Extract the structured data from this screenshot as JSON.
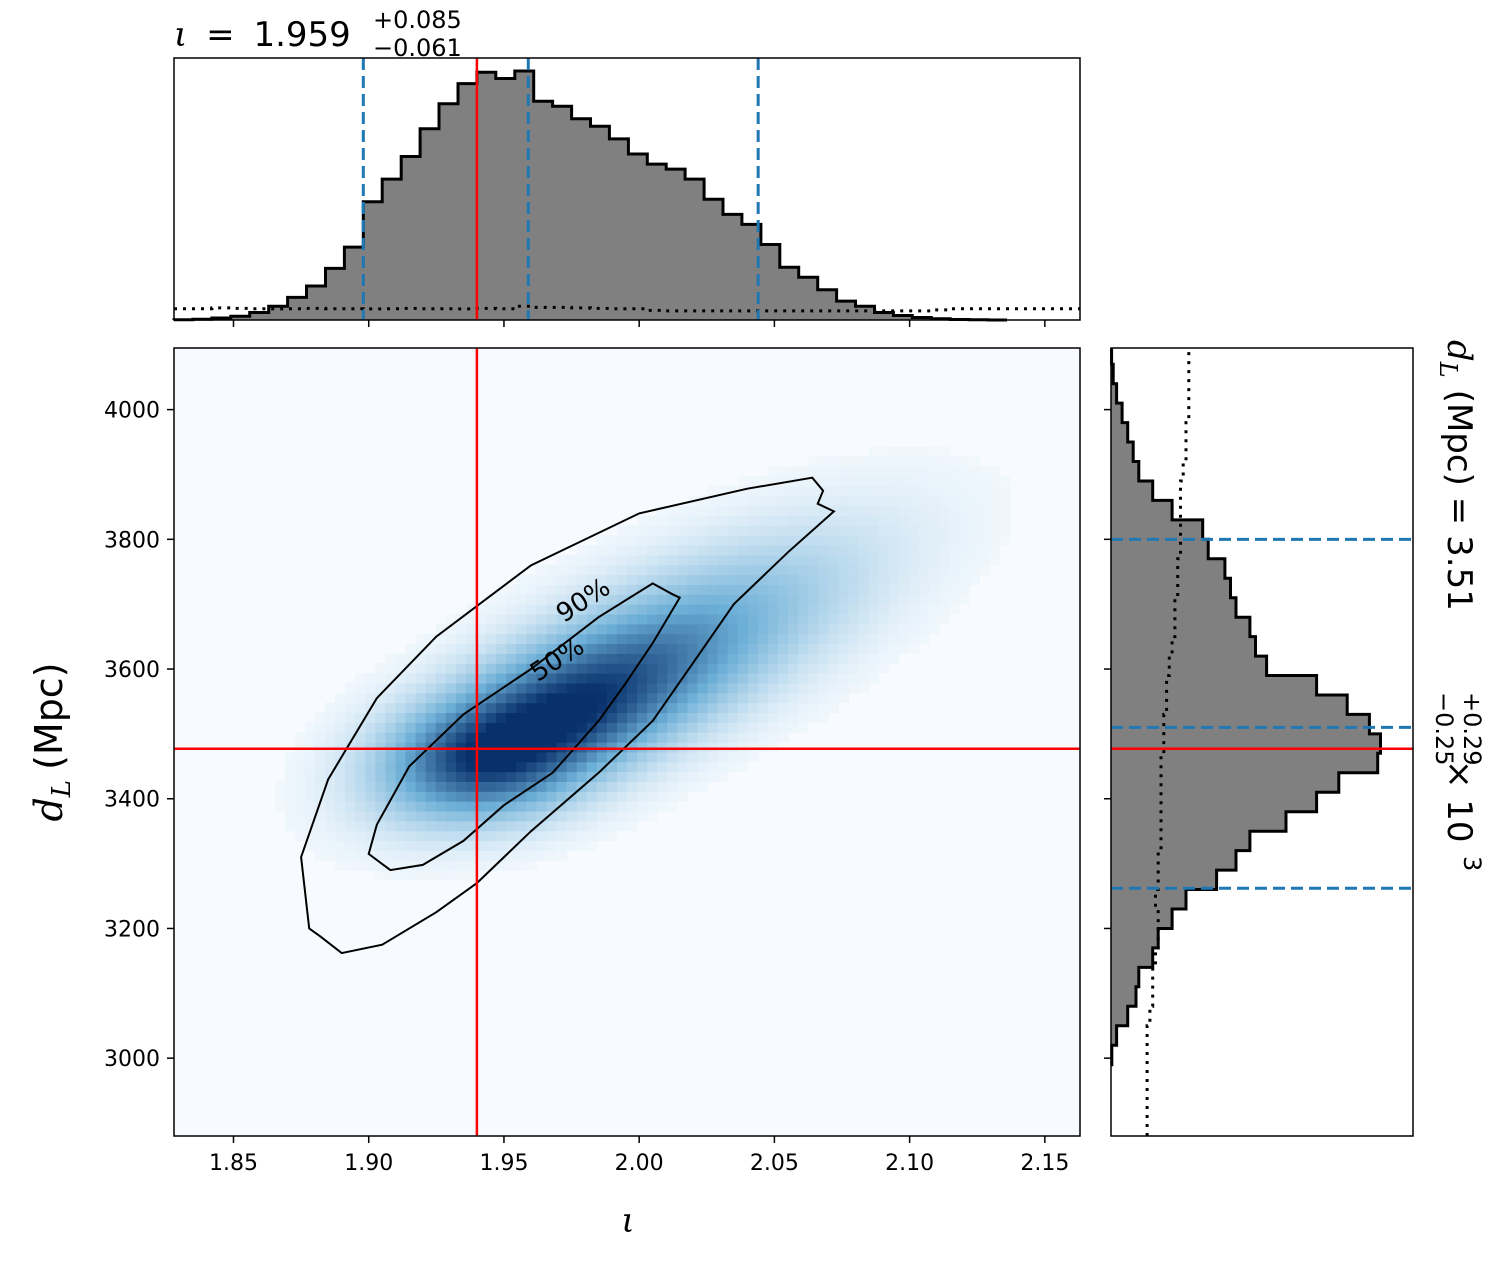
{
  "chart_data": {
    "type": "heatmap",
    "top_title": {
      "symbol": "ι",
      "equals": "=",
      "median": "1.959",
      "upper": "+0.085",
      "lower": "−0.061"
    },
    "right_title": {
      "label": "d",
      "label_sub": "L",
      "unit": "(Mpc) =",
      "median": "3.51",
      "upper": "+0.29",
      "lower": "−0.25",
      "times": "× 10",
      "exponent": "3"
    },
    "xlabel": "ι",
    "ylabel": "d",
    "ylabel_sub": "L",
    "ylabel_unit": "(Mpc)",
    "xlim": [
      1.828,
      2.163
    ],
    "ylim": [
      2880,
      4095
    ],
    "xticks": [
      1.85,
      1.9,
      1.95,
      2.0,
      2.05,
      2.1,
      2.15
    ],
    "xtick_labels": [
      "1.85",
      "1.90",
      "1.95",
      "2.00",
      "2.05",
      "2.10",
      "2.15"
    ],
    "yticks": [
      3000,
      3200,
      3400,
      3600,
      3800,
      4000
    ],
    "ytick_labels": [
      "3000",
      "3200",
      "3400",
      "3600",
      "3800",
      "4000"
    ],
    "injected_value": {
      "iota": 1.94,
      "dL": 3477
    },
    "quantile_lines_iota": [
      1.898,
      1.959,
      2.044
    ],
    "quantile_lines_dL": [
      3262,
      3510,
      3800
    ],
    "contour_labels": [
      "90%",
      "50%"
    ],
    "contours": [
      {
        "label": "90%",
        "points": [
          [
            2.072,
            3843
          ],
          [
            2.066,
            3855
          ],
          [
            2.068,
            3875
          ],
          [
            2.064,
            3895
          ],
          [
            2.04,
            3878
          ],
          [
            2.0,
            3840
          ],
          [
            1.96,
            3760
          ],
          [
            1.925,
            3650
          ],
          [
            1.903,
            3555
          ],
          [
            1.885,
            3430
          ],
          [
            1.875,
            3310
          ],
          [
            1.878,
            3200
          ],
          [
            1.882,
            3188
          ],
          [
            1.89,
            3162
          ],
          [
            1.905,
            3175
          ],
          [
            1.925,
            3225
          ],
          [
            1.94,
            3270
          ],
          [
            1.96,
            3350
          ],
          [
            1.985,
            3440
          ],
          [
            2.005,
            3520
          ],
          [
            2.02,
            3610
          ],
          [
            2.035,
            3700
          ],
          [
            2.055,
            3780
          ]
        ]
      },
      {
        "label": "50%",
        "points": [
          [
            2.015,
            3710
          ],
          [
            2.012,
            3716
          ],
          [
            2.005,
            3732
          ],
          [
            1.985,
            3680
          ],
          [
            1.96,
            3600
          ],
          [
            1.935,
            3530
          ],
          [
            1.915,
            3450
          ],
          [
            1.903,
            3360
          ],
          [
            1.9,
            3315
          ],
          [
            1.908,
            3290
          ],
          [
            1.92,
            3298
          ],
          [
            1.935,
            3335
          ],
          [
            1.95,
            3390
          ],
          [
            1.968,
            3440
          ],
          [
            1.985,
            3520
          ],
          [
            1.995,
            3578
          ],
          [
            2.005,
            3640
          ]
        ]
      }
    ],
    "density_peak": {
      "iota": 1.948,
      "dL": 3475
    },
    "top_histogram": {
      "bin_edges": [
        1.828,
        1.835,
        1.842,
        1.849,
        1.856,
        1.863,
        1.87,
        1.877,
        1.884,
        1.891,
        1.898,
        1.905,
        1.912,
        1.919,
        1.926,
        1.933,
        1.94,
        1.947,
        1.954,
        1.961,
        1.968,
        1.975,
        1.982,
        1.989,
        1.996,
        2.003,
        2.01,
        2.017,
        2.024,
        2.031,
        2.038,
        2.045,
        2.052,
        2.059,
        2.066,
        2.073,
        2.08,
        2.087,
        2.094,
        2.101,
        2.108,
        2.115,
        2.122,
        2.129,
        2.136
      ],
      "density": [
        0.001,
        0.003,
        0.008,
        0.015,
        0.03,
        0.055,
        0.09,
        0.135,
        0.205,
        0.29,
        0.47,
        0.56,
        0.65,
        0.76,
        0.86,
        0.94,
        0.985,
        0.96,
        0.99,
        0.87,
        0.85,
        0.8,
        0.77,
        0.72,
        0.66,
        0.62,
        0.6,
        0.56,
        0.48,
        0.42,
        0.38,
        0.3,
        0.21,
        0.17,
        0.12,
        0.075,
        0.055,
        0.03,
        0.018,
        0.01,
        0.005,
        0.002,
        0.001,
        0.0
      ],
      "prior_dotted": [
        0.045,
        0.045,
        0.048,
        0.046,
        0.045,
        0.044,
        0.045,
        0.046,
        0.045,
        0.045,
        0.044,
        0.045,
        0.046,
        0.045,
        0.045,
        0.044,
        0.046,
        0.045,
        0.055,
        0.05,
        0.05,
        0.048,
        0.046,
        0.045,
        0.045,
        0.038,
        0.036,
        0.036,
        0.036,
        0.036,
        0.036,
        0.036,
        0.036,
        0.036,
        0.036,
        0.036,
        0.036,
        0.036,
        0.036,
        0.036,
        0.04,
        0.045,
        0.045,
        0.045
      ]
    },
    "right_histogram": {
      "bin_edges": [
        2990,
        3020,
        3050,
        3080,
        3110,
        3140,
        3170,
        3200,
        3230,
        3260,
        3290,
        3320,
        3350,
        3380,
        3410,
        3440,
        3470,
        3500,
        3530,
        3560,
        3590,
        3620,
        3650,
        3680,
        3710,
        3740,
        3770,
        3800,
        3830,
        3860,
        3890,
        3920,
        3950,
        3980,
        4010,
        4040,
        4070,
        4095
      ],
      "density": [
        0.003,
        0.02,
        0.06,
        0.09,
        0.1,
        0.15,
        0.17,
        0.22,
        0.27,
        0.38,
        0.45,
        0.5,
        0.63,
        0.74,
        0.82,
        0.96,
        0.97,
        0.93,
        0.85,
        0.74,
        0.56,
        0.52,
        0.5,
        0.45,
        0.43,
        0.41,
        0.35,
        0.33,
        0.22,
        0.15,
        0.1,
        0.08,
        0.06,
        0.04,
        0.02,
        0.008,
        0.002
      ],
      "prior_dotted": [
        0.13,
        0.13,
        0.14,
        0.15,
        0.15,
        0.16,
        0.17,
        0.17,
        0.16,
        0.17,
        0.17,
        0.18,
        0.18,
        0.18,
        0.18,
        0.18,
        0.19,
        0.19,
        0.2,
        0.2,
        0.21,
        0.22,
        0.23,
        0.23,
        0.24,
        0.24,
        0.25,
        0.25,
        0.25,
        0.25,
        0.26,
        0.27,
        0.27,
        0.28,
        0.28,
        0.28,
        0.28
      ]
    },
    "colors": {
      "histogram_fill": "#808080",
      "histogram_edge": "#000000",
      "quantile_lines": "#1f77b4",
      "injection_lines": "#ff0000",
      "colormap_low": "#f7fbff",
      "colormap_mid": "#6baed6",
      "colormap_high": "#08306b"
    }
  }
}
